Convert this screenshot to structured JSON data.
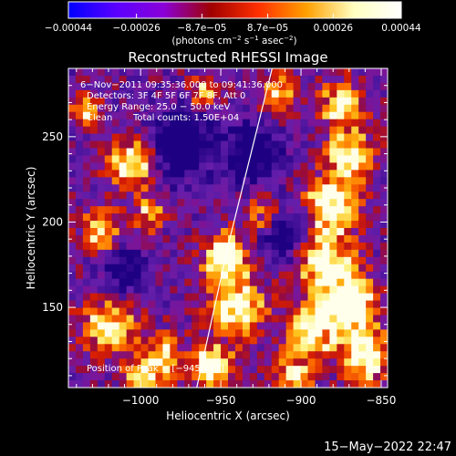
{
  "chart_data": {
    "type": "heatmap",
    "title": "Reconstructed RHESSI Image",
    "xlabel": "Heliocentric X (arcsec)",
    "ylabel": "Heliocentric Y (arcsec)",
    "xlim": [
      -1045,
      -846
    ],
    "ylim": [
      103,
      290
    ],
    "x_ticks": [
      {
        "value": -1000,
        "label": "−1000"
      },
      {
        "value": -950,
        "label": "−950"
      },
      {
        "value": -900,
        "label": "−900"
      },
      {
        "value": -850,
        "label": "−850"
      }
    ],
    "y_ticks": [
      {
        "value": 150,
        "label": "150"
      },
      {
        "value": 200,
        "label": "200"
      },
      {
        "value": 250,
        "label": "250"
      }
    ],
    "colorbar": {
      "range": [
        -0.00044,
        0.00044
      ],
      "tick_values": [
        -0.00044,
        -0.00026,
        -8.7e-05,
        8.7e-05,
        0.00026,
        0.00044
      ],
      "tick_labels": [
        "−0.00044",
        "−0.00026",
        "−8.7e−05",
        "8.7e−05",
        "0.00026",
        "0.00044"
      ],
      "unit_main": "(photons cm",
      "unit_exp1": "−2",
      "unit_mid1": " s",
      "unit_exp2": "−1",
      "unit_mid2": " asec",
      "unit_exp3": "−2",
      "unit_end": ")",
      "colors": [
        "#0000ff",
        "#5a00ff",
        "#8a00d8",
        "#a00000",
        "#ff3000",
        "#ffa000",
        "#ffffc0",
        "#ffffff"
      ]
    },
    "annotations": {
      "time_range": "6−Nov−2011 09:35:36.000 to 09:41:36.000",
      "detectors": "Detectors: 3F 4F 5F 6F 7F 8F, Att 0",
      "energy_range": "Energy Range: 25.0 − 50.0 keV",
      "clean": "Clean",
      "total_counts": "Total counts: 1.50E+04",
      "peak_position": "Position of Peak = [−945,112]"
    },
    "limb_line": [
      [
        -965,
        103
      ],
      [
        -945,
        188
      ],
      [
        -918,
        290
      ]
    ],
    "background_color": "#6a1fa8",
    "hot_spots": [
      {
        "x": -947,
        "y": 180,
        "amp": 0.95,
        "r": 9
      },
      {
        "x": -940,
        "y": 150,
        "amp": 0.8,
        "r": 12
      },
      {
        "x": -955,
        "y": 115,
        "amp": 0.9,
        "r": 8
      },
      {
        "x": -1005,
        "y": 235,
        "amp": 0.75,
        "r": 10
      },
      {
        "x": -1025,
        "y": 195,
        "amp": 0.55,
        "r": 9
      },
      {
        "x": -995,
        "y": 205,
        "amp": 0.5,
        "r": 7
      },
      {
        "x": -1020,
        "y": 140,
        "amp": 0.6,
        "r": 12
      },
      {
        "x": -985,
        "y": 120,
        "amp": 0.55,
        "r": 10
      },
      {
        "x": -1000,
        "y": 110,
        "amp": 0.5,
        "r": 8
      },
      {
        "x": -915,
        "y": 275,
        "amp": 0.55,
        "r": 8
      },
      {
        "x": -875,
        "y": 270,
        "amp": 0.7,
        "r": 9
      },
      {
        "x": -870,
        "y": 240,
        "amp": 0.75,
        "r": 10
      },
      {
        "x": -880,
        "y": 210,
        "amp": 0.85,
        "r": 11
      },
      {
        "x": -885,
        "y": 175,
        "amp": 0.9,
        "r": 12
      },
      {
        "x": -870,
        "y": 150,
        "amp": 0.95,
        "r": 12
      },
      {
        "x": -895,
        "y": 135,
        "amp": 0.8,
        "r": 10
      },
      {
        "x": -860,
        "y": 120,
        "amp": 0.85,
        "r": 10
      },
      {
        "x": -905,
        "y": 110,
        "amp": 0.6,
        "r": 8
      },
      {
        "x": -925,
        "y": 205,
        "amp": 0.45,
        "r": 7
      },
      {
        "x": -960,
        "y": 275,
        "amp": 0.5,
        "r": 7
      },
      {
        "x": -1035,
        "y": 265,
        "amp": 0.45,
        "r": 7
      }
    ],
    "cold_spots": [
      {
        "x": -975,
        "y": 245,
        "amp": 0.6,
        "r": 14
      },
      {
        "x": -930,
        "y": 240,
        "amp": 0.55,
        "r": 12
      },
      {
        "x": -910,
        "y": 190,
        "amp": 0.5,
        "r": 10
      },
      {
        "x": -1010,
        "y": 170,
        "amp": 0.45,
        "r": 10
      }
    ]
  },
  "footer": {
    "timestamp": "15−May−2022 22:47"
  }
}
